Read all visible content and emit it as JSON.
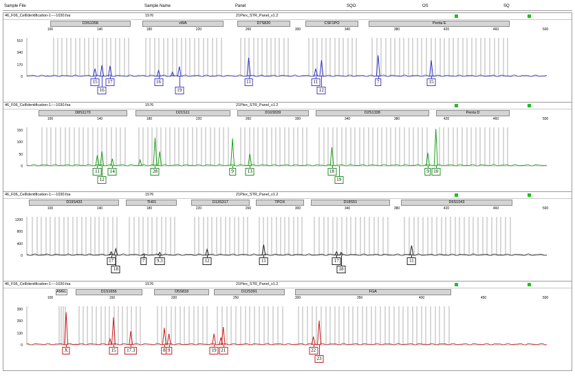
{
  "header": {
    "sample_file": "Sample File",
    "sample_name": "Sample Name",
    "panel": "Panel",
    "sqo": "SQO",
    "os": "OS",
    "sq": "SQ"
  },
  "panels": [
    {
      "file": "46_F06_CellIdentification-1----1030.fsa",
      "sample": "1576",
      "panel": "21Plex_STR_Panel_v1.2",
      "color": "#3030c8",
      "labelColor": "#4040c8",
      "loci": [
        {
          "name": "D3S1358",
          "start": 90,
          "end": 160
        },
        {
          "name": "vWA",
          "start": 170,
          "end": 240
        },
        {
          "name": "D7S820",
          "start": 252,
          "end": 298
        },
        {
          "name": "CSF1PO",
          "start": 311,
          "end": 357
        },
        {
          "name": "Penta E",
          "start": 366,
          "end": 488
        }
      ],
      "xticks": [
        "100",
        "140",
        "180",
        "220",
        "260",
        "300",
        "340",
        "380",
        "420",
        "460",
        "500"
      ],
      "yticks": [
        "510",
        "340",
        "170",
        "0"
      ],
      "ymax": 510,
      "peaks": [
        {
          "x": 129,
          "h": 110
        },
        {
          "x": 135,
          "h": 160
        },
        {
          "x": 142,
          "h": 150
        },
        {
          "x": 184,
          "h": 85
        },
        {
          "x": 196,
          "h": 60
        },
        {
          "x": 202,
          "h": 140
        },
        {
          "x": 262,
          "h": 265
        },
        {
          "x": 320,
          "h": 110
        },
        {
          "x": 325,
          "h": 230
        },
        {
          "x": 374,
          "h": 300
        },
        {
          "x": 420,
          "h": 230
        }
      ],
      "labels": [
        {
          "text": "15",
          "x": 129,
          "row": 0
        },
        {
          "text": "17",
          "x": 142,
          "row": 0
        },
        {
          "text": "16",
          "x": 135,
          "row": 1
        },
        {
          "text": "16",
          "x": 184,
          "row": 0
        },
        {
          "text": "19",
          "x": 202,
          "row": 1
        },
        {
          "text": "11",
          "x": 262,
          "row": 0
        },
        {
          "text": "11",
          "x": 320,
          "row": 0
        },
        {
          "text": "12",
          "x": 325,
          "row": 1
        },
        {
          "text": "7",
          "x": 374,
          "row": 0
        },
        {
          "text": "15",
          "x": 420,
          "row": 0
        }
      ]
    },
    {
      "file": "46_F06_CellIdentification-1----1030.fsa",
      "sample": "1576",
      "panel": "21Plex_STR_Panel_v1.2",
      "color": "#18a018",
      "labelColor": "#209020",
      "loci": [
        {
          "name": "D8S1170",
          "start": 80,
          "end": 157
        },
        {
          "name": "D21S11",
          "start": 164,
          "end": 246
        },
        {
          "name": "D16S539",
          "start": 252,
          "end": 314
        },
        {
          "name": "D2S1338",
          "start": 320,
          "end": 418
        },
        {
          "name": "Penta D",
          "start": 424,
          "end": 488
        }
      ],
      "xticks": [
        "100",
        "140",
        "180",
        "220",
        "260",
        "300",
        "340",
        "380",
        "420",
        "460",
        "500"
      ],
      "yticks": [
        "150",
        "100",
        "50",
        "0"
      ],
      "ymax": 150,
      "peaks": [
        {
          "x": 131,
          "h": 45
        },
        {
          "x": 135,
          "h": 60
        },
        {
          "x": 144,
          "h": 30
        },
        {
          "x": 168,
          "h": 25
        },
        {
          "x": 181,
          "h": 118
        },
        {
          "x": 185,
          "h": 60
        },
        {
          "x": 248,
          "h": 115
        },
        {
          "x": 263,
          "h": 50
        },
        {
          "x": 334,
          "h": 78
        },
        {
          "x": 417,
          "h": 55
        },
        {
          "x": 424,
          "h": 155
        }
      ],
      "labels": [
        {
          "text": "11",
          "x": 131,
          "row": 0
        },
        {
          "text": "14",
          "x": 144,
          "row": 0
        },
        {
          "text": "12",
          "x": 135,
          "row": 1
        },
        {
          "text": "28",
          "x": 181,
          "row": 0
        },
        {
          "text": "9",
          "x": 248,
          "row": 0
        },
        {
          "text": "13",
          "x": 263,
          "row": 0
        },
        {
          "text": "18",
          "x": 334,
          "row": 0
        },
        {
          "text": "19",
          "x": 340,
          "row": 1
        },
        {
          "text": "9",
          "x": 417,
          "row": 0
        },
        {
          "text": "10",
          "x": 424,
          "row": 0
        }
      ]
    },
    {
      "file": "46_F06_CellIdentification-1----1030.fsa",
      "sample": "1576",
      "panel": "21Plex_STR_Panel_v1.2",
      "color": "#202020",
      "labelColor": "#202020",
      "loci": [
        {
          "name": "D19S433",
          "start": 72,
          "end": 150
        },
        {
          "name": "TH01",
          "start": 156,
          "end": 200
        },
        {
          "name": "D13S317",
          "start": 212,
          "end": 263
        },
        {
          "name": "TPOX",
          "start": 268,
          "end": 310
        },
        {
          "name": "D18S51",
          "start": 316,
          "end": 384
        },
        {
          "name": "D6S1043",
          "start": 394,
          "end": 490
        }
      ],
      "xticks": [
        "100",
        "140",
        "180",
        "220",
        "260",
        "300",
        "340",
        "380",
        "420",
        "460",
        "500"
      ],
      "yticks": [
        "1200",
        "800",
        "400",
        "0"
      ],
      "ymax": 1200,
      "peaks": [
        {
          "x": 143,
          "h": 120
        },
        {
          "x": 147,
          "h": 220
        },
        {
          "x": 171,
          "h": 40
        },
        {
          "x": 185,
          "h": 100
        },
        {
          "x": 226,
          "h": 200
        },
        {
          "x": 275,
          "h": 360
        },
        {
          "x": 338,
          "h": 120
        },
        {
          "x": 342,
          "h": 100
        },
        {
          "x": 403,
          "h": 330
        }
      ],
      "labels": [
        {
          "text": "17",
          "x": 143,
          "row": 0
        },
        {
          "text": "18",
          "x": 147,
          "row": 1
        },
        {
          "text": "7",
          "x": 171,
          "row": 0
        },
        {
          "text": "9.3",
          "x": 185,
          "row": 0
        },
        {
          "text": "12",
          "x": 226,
          "row": 0
        },
        {
          "text": "11",
          "x": 275,
          "row": 0
        },
        {
          "text": "17",
          "x": 338,
          "row": 0
        },
        {
          "text": "18",
          "x": 342,
          "row": 1
        },
        {
          "text": "11",
          "x": 403,
          "row": 0
        }
      ]
    },
    {
      "file": "46_F06_CellIdentification-1----1030.fsa",
      "sample": "1576",
      "panel": "21Plex_STR_Panel_v1.2",
      "color": "#d01818",
      "labelColor": "#c02020",
      "loci": [
        {
          "name": "AMEL",
          "start": 95,
          "end": 105,
          "amel": true
        },
        {
          "name": "D1S1656",
          "start": 112,
          "end": 170
        },
        {
          "name": "D5S818",
          "start": 180,
          "end": 228
        },
        {
          "name": "D12S391",
          "start": 232,
          "end": 293
        },
        {
          "name": "FGA",
          "start": 302,
          "end": 437
        }
      ],
      "xticks": [
        "100",
        "150",
        "200",
        "250",
        "300",
        "350",
        "400",
        "450",
        "500"
      ],
      "yticks": [
        "390",
        "260",
        "130",
        "0"
      ],
      "ymax": 390,
      "peaks": [
        {
          "x": 104,
          "h": 355
        },
        {
          "x": 142,
          "h": 65
        },
        {
          "x": 145,
          "h": 300
        },
        {
          "x": 160,
          "h": 150
        },
        {
          "x": 189,
          "h": 185
        },
        {
          "x": 193,
          "h": 120
        },
        {
          "x": 232,
          "h": 120
        },
        {
          "x": 238,
          "h": 80
        },
        {
          "x": 240,
          "h": 195
        },
        {
          "x": 318,
          "h": 90
        },
        {
          "x": 323,
          "h": 265
        }
      ],
      "labels": [
        {
          "text": "X",
          "x": 104,
          "row": 0
        },
        {
          "text": "15",
          "x": 145,
          "row": 0
        },
        {
          "text": "17.3",
          "x": 160,
          "row": 0
        },
        {
          "text": "8",
          "x": 189,
          "row": 0
        },
        {
          "text": "9",
          "x": 193,
          "row": 0
        },
        {
          "text": "19",
          "x": 232,
          "row": 0
        },
        {
          "text": "21",
          "x": 240,
          "row": 0
        },
        {
          "text": "22",
          "x": 318,
          "row": 0
        },
        {
          "text": "23",
          "x": 323,
          "row": 1
        }
      ]
    }
  ]
}
